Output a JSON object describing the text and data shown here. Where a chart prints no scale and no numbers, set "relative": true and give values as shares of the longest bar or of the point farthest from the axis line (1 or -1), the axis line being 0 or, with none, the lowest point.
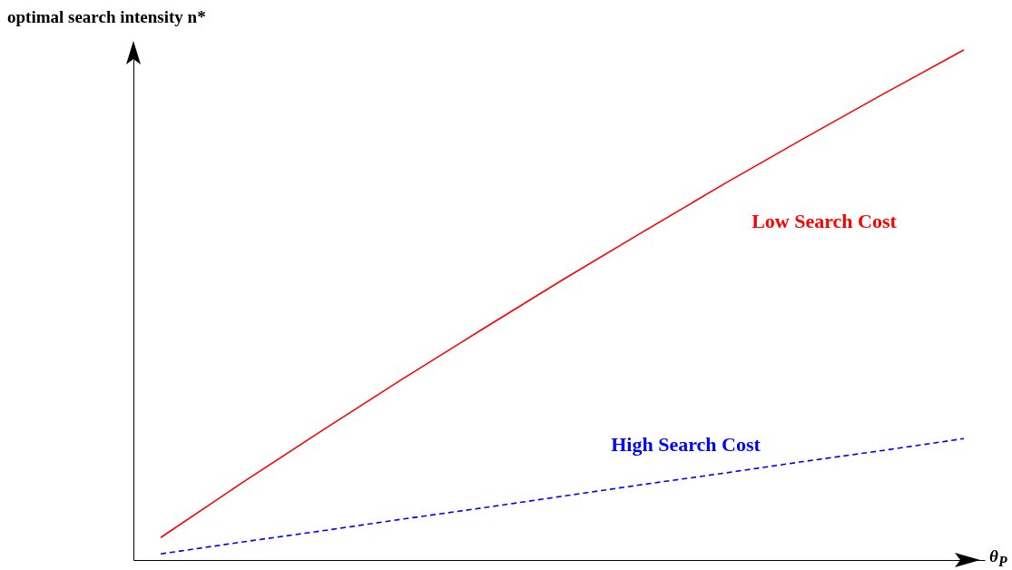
{
  "chart_data": {
    "type": "line",
    "relative": true,
    "xlabel": "θ$_{P}$",
    "ylabel": "optimal search intensity n*",
    "grid": false,
    "marker": "none",
    "line_style": "solid",
    "categories": [
      null,
      null,
      null,
      null,
      null,
      null,
      null,
      null,
      null,
      null,
      null
    ],
    "series": [
      {
        "name": "Low Search Cost",
        "color": "#ff0000",
        "values": [
          0.044,
          0.15,
          0.253,
          0.354,
          0.452,
          0.549,
          0.643,
          0.736,
          0.826,
          0.914,
          1
        ]
      },
      {
        "name": "High Search Cost",
        "color": "#0000ff",
        "line_style": "dashed",
        "values": [
          0.012,
          0.035,
          0.057,
          0.08,
          0.102,
          0.125,
          0.148,
          0.17,
          0.193,
          0.215,
          0.238
        ]
      }
    ]
  }
}
